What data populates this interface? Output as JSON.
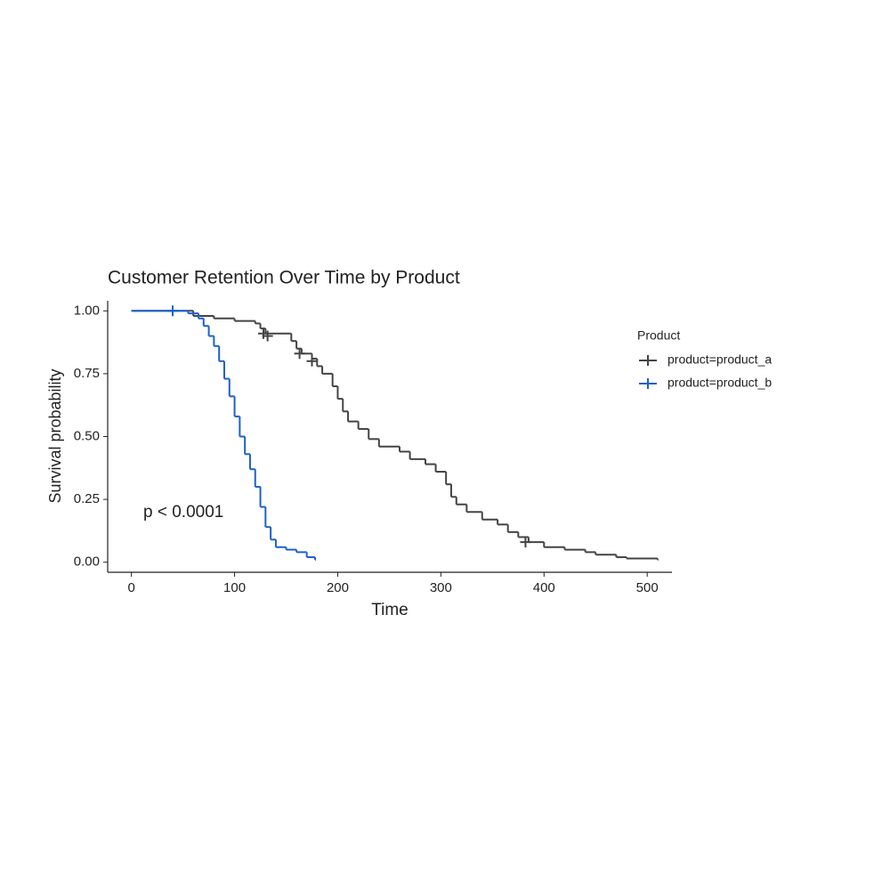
{
  "chart_data": {
    "type": "step",
    "title": "Customer Retention Over Time by Product",
    "x_label": "Time",
    "y_label": "Survival probability",
    "annotation": "p < 0.0001",
    "legend_title": "Product",
    "xlim": [
      -23,
      524
    ],
    "ylim": [
      -0.04,
      1.04
    ],
    "xticks": [
      0,
      100,
      200,
      300,
      400,
      500
    ],
    "yticks": [
      {
        "value": 0,
        "label": "0.00"
      },
      {
        "value": 0.25,
        "label": "0.25"
      },
      {
        "value": 0.5,
        "label": "0.50"
      },
      {
        "value": 0.75,
        "label": "0.75"
      },
      {
        "value": 1,
        "label": "1.00"
      }
    ],
    "series": [
      {
        "name": "product=product_a",
        "color": "#444444",
        "x": [
          0,
          60,
          80,
          100,
          120,
          125,
          130,
          155,
          160,
          165,
          175,
          180,
          185,
          195,
          200,
          205,
          210,
          220,
          230,
          240,
          260,
          270,
          285,
          295,
          305,
          310,
          315,
          325,
          340,
          355,
          365,
          375,
          385,
          400,
          420,
          440,
          450,
          470,
          480,
          510
        ],
        "values": [
          1.0,
          0.98,
          0.97,
          0.96,
          0.95,
          0.93,
          0.91,
          0.88,
          0.85,
          0.83,
          0.81,
          0.78,
          0.75,
          0.7,
          0.65,
          0.6,
          0.56,
          0.53,
          0.49,
          0.46,
          0.44,
          0.41,
          0.39,
          0.36,
          0.31,
          0.26,
          0.23,
          0.2,
          0.17,
          0.15,
          0.12,
          0.1,
          0.08,
          0.06,
          0.05,
          0.04,
          0.03,
          0.02,
          0.015,
          0.01
        ],
        "censor_x": [
          128,
          132,
          163,
          175,
          382
        ],
        "censor_values": [
          0.91,
          0.9,
          0.83,
          0.8,
          0.08
        ]
      },
      {
        "name": "product=product_b",
        "color": "#1f5fcc",
        "x": [
          0,
          55,
          65,
          70,
          75,
          80,
          85,
          90,
          95,
          100,
          105,
          110,
          115,
          120,
          125,
          130,
          135,
          140,
          150,
          160,
          170,
          178
        ],
        "values": [
          1.0,
          0.99,
          0.97,
          0.94,
          0.9,
          0.86,
          0.8,
          0.73,
          0.66,
          0.58,
          0.5,
          0.43,
          0.37,
          0.3,
          0.22,
          0.14,
          0.09,
          0.06,
          0.05,
          0.04,
          0.02,
          0.01
        ],
        "censor_x": [
          40
        ],
        "censor_values": [
          1.0
        ]
      }
    ]
  }
}
